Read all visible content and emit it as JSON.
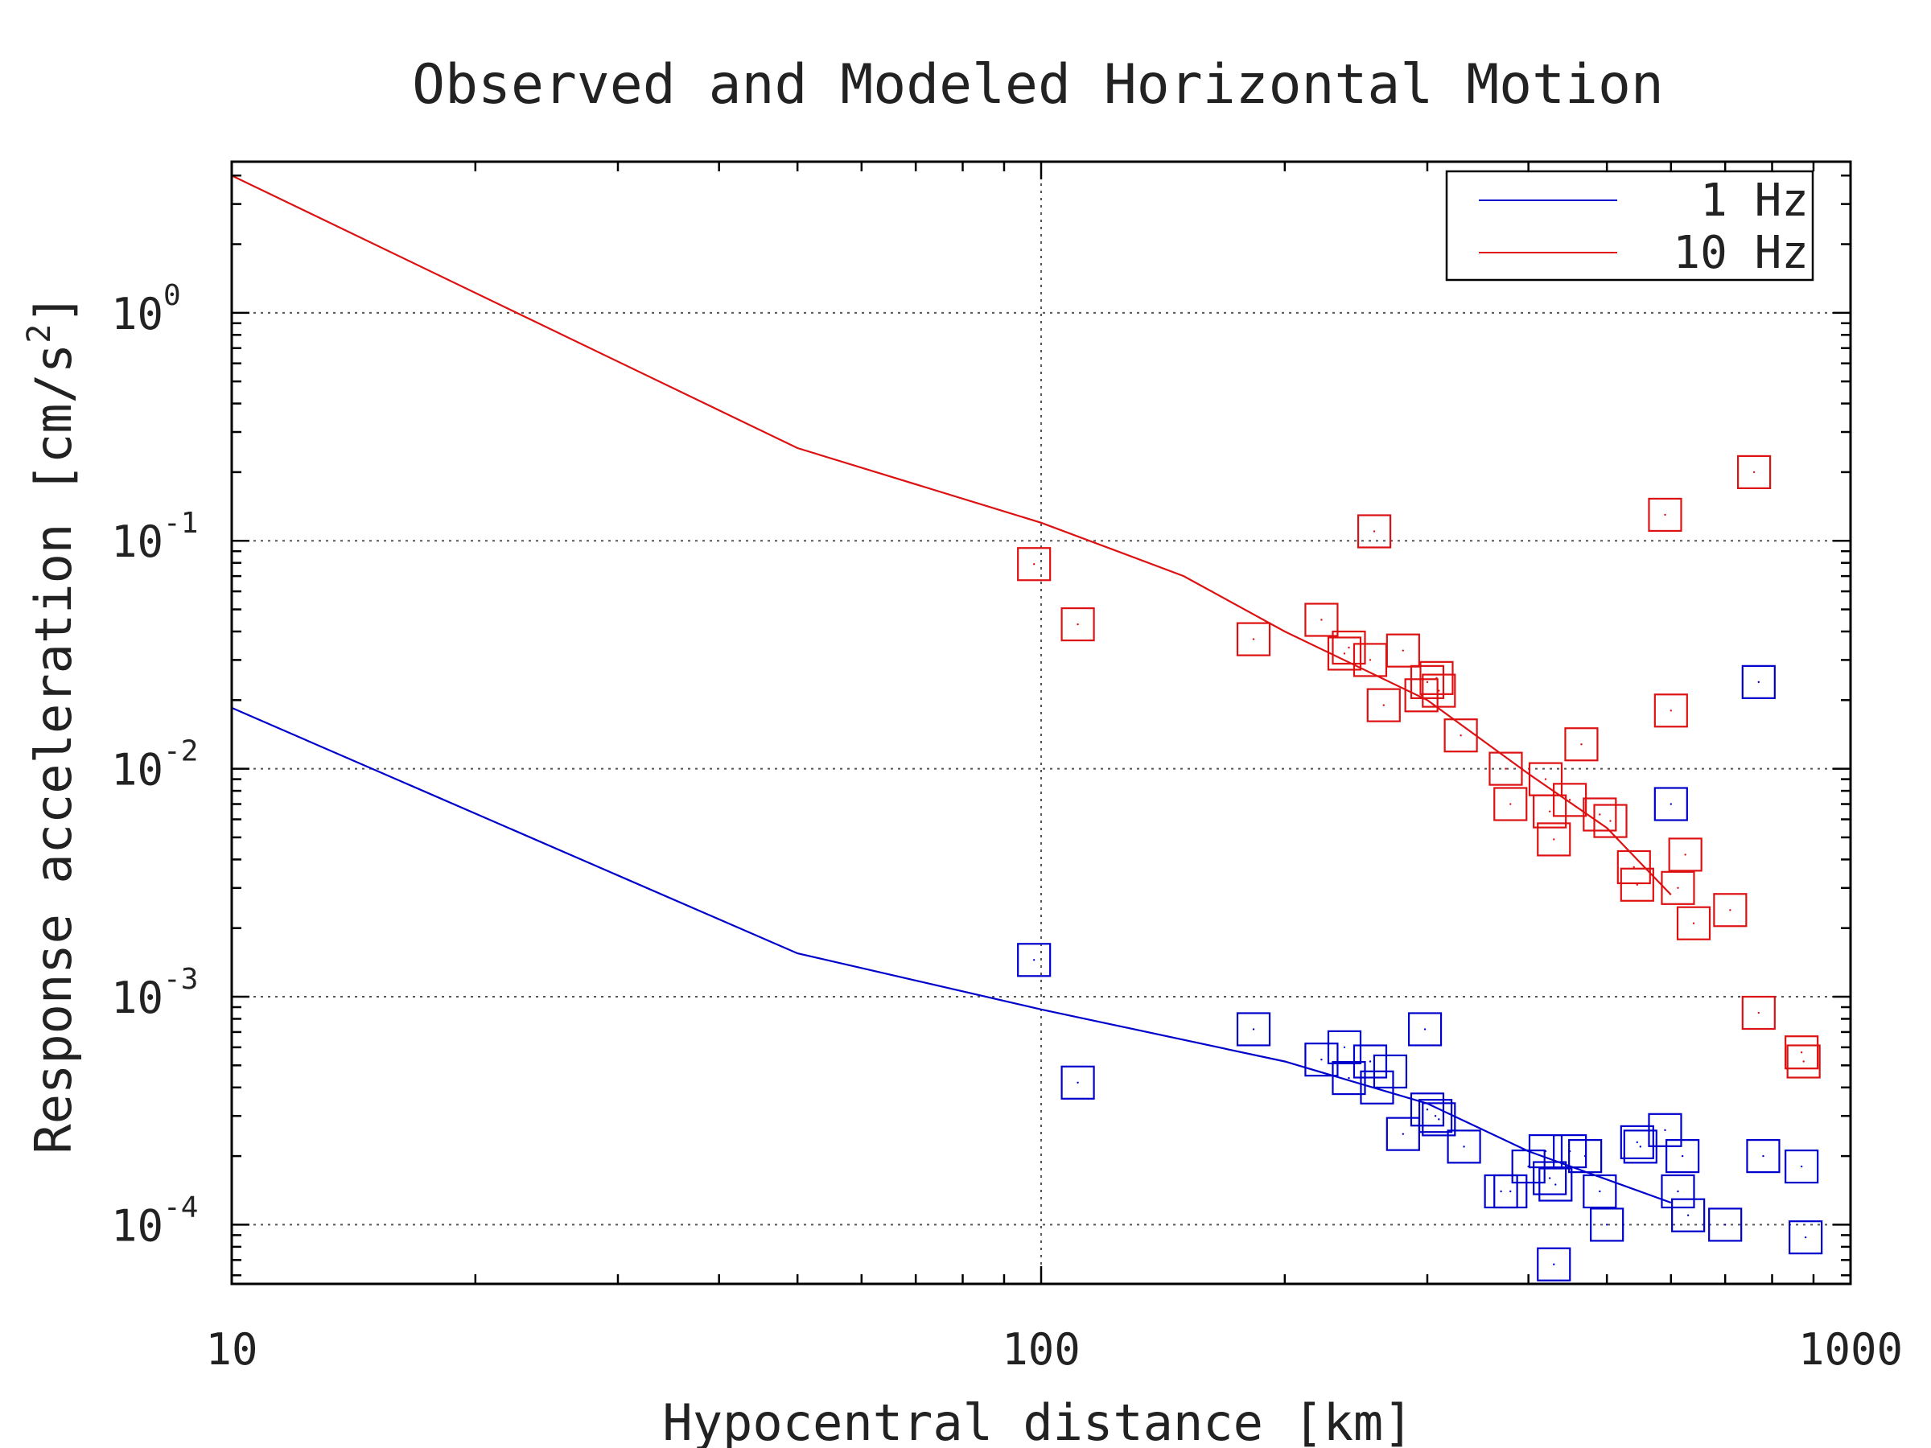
{
  "chart_data": {
    "type": "line",
    "title": "Observed and Modeled Horizontal Motion",
    "xlabel": "Hypocentral distance [km]",
    "ylabel": "Response acceleration [cm/s",
    "ylabel_sup": "2",
    "ylabel_end": "]",
    "x_scale": "log",
    "y_scale": "log",
    "xlim": [
      10,
      1000
    ],
    "ylim": [
      5.5e-05,
      4.6
    ],
    "x_ticks": [
      {
        "value": 10,
        "label": "10"
      },
      {
        "value": 100,
        "label": "100"
      },
      {
        "value": 1000,
        "label": "1000"
      }
    ],
    "y_ticks": [
      {
        "value": 0.0001,
        "base": "10",
        "exp": "-4"
      },
      {
        "value": 0.001,
        "base": "10",
        "exp": "-3"
      },
      {
        "value": 0.01,
        "base": "10",
        "exp": "-2"
      },
      {
        "value": 0.1,
        "base": "10",
        "exp": "-1"
      },
      {
        "value": 1,
        "base": "10",
        "exp": "0"
      }
    ],
    "grid": true,
    "legend_position": "top-right",
    "series": [
      {
        "name": "1 Hz",
        "color": "#0000cc",
        "line": [
          [
            10,
            0.0185
          ],
          [
            50,
            0.00155
          ],
          [
            100,
            0.00088
          ],
          [
            200,
            0.00052
          ],
          [
            300,
            0.00034
          ],
          [
            400,
            0.00021
          ],
          [
            600,
            0.000125
          ]
        ],
        "points": [
          [
            98,
            0.00145
          ],
          [
            111,
            0.00042
          ],
          [
            183,
            0.00072
          ],
          [
            222,
            0.00053
          ],
          [
            237,
            0.0006
          ],
          [
            240,
            0.00044
          ],
          [
            255,
            0.00052
          ],
          [
            260,
            0.0004
          ],
          [
            270,
            0.00047
          ],
          [
            280,
            0.00025
          ],
          [
            298,
            0.00072
          ],
          [
            300,
            0.00032
          ],
          [
            307,
            0.0003
          ],
          [
            310,
            0.00029
          ],
          [
            333,
            0.00022
          ],
          [
            370,
            0.00014
          ],
          [
            380,
            0.00014
          ],
          [
            400,
            0.00018
          ],
          [
            420,
            0.00021
          ],
          [
            425,
            0.00016
          ],
          [
            430,
            6.7e-05
          ],
          [
            432,
            0.00015
          ],
          [
            450,
            0.00021
          ],
          [
            470,
            0.0002
          ],
          [
            490,
            0.00014
          ],
          [
            500,
            0.0001
          ],
          [
            545,
            0.00023
          ],
          [
            550,
            0.00022
          ],
          [
            590,
            0.00026
          ],
          [
            600,
            0.007
          ],
          [
            612,
            0.00014
          ],
          [
            620,
            0.0002
          ],
          [
            630,
            0.00011
          ],
          [
            700,
            0.0001
          ],
          [
            770,
            0.024
          ],
          [
            780,
            0.0002
          ],
          [
            870,
            0.00018
          ],
          [
            880,
            8.8e-05
          ]
        ]
      },
      {
        "name": "10 Hz",
        "color": "#dd1111",
        "line": [
          [
            10,
            4.0
          ],
          [
            50,
            0.255
          ],
          [
            100,
            0.12
          ],
          [
            150,
            0.07
          ],
          [
            200,
            0.04
          ],
          [
            300,
            0.02
          ],
          [
            400,
            0.0095
          ],
          [
            500,
            0.0055
          ],
          [
            600,
            0.0028
          ]
        ],
        "points": [
          [
            98,
            0.079
          ],
          [
            111,
            0.043
          ],
          [
            183,
            0.037
          ],
          [
            222,
            0.045
          ],
          [
            237,
            0.032
          ],
          [
            240,
            0.034
          ],
          [
            255,
            0.03
          ],
          [
            258,
            0.11
          ],
          [
            265,
            0.019
          ],
          [
            280,
            0.033
          ],
          [
            295,
            0.021
          ],
          [
            300,
            0.024
          ],
          [
            308,
            0.025
          ],
          [
            310,
            0.022
          ],
          [
            330,
            0.014
          ],
          [
            375,
            0.01
          ],
          [
            380,
            0.007
          ],
          [
            420,
            0.009
          ],
          [
            425,
            0.0065
          ],
          [
            430,
            0.0049
          ],
          [
            450,
            0.0073
          ],
          [
            465,
            0.0128
          ],
          [
            490,
            0.0063
          ],
          [
            505,
            0.0059
          ],
          [
            540,
            0.0037
          ],
          [
            545,
            0.0031
          ],
          [
            590,
            0.13
          ],
          [
            600,
            0.018
          ],
          [
            612,
            0.003
          ],
          [
            625,
            0.0042
          ],
          [
            640,
            0.0021
          ],
          [
            710,
            0.0024
          ],
          [
            760,
            0.2
          ],
          [
            770,
            0.00085
          ],
          [
            870,
            0.00057
          ],
          [
            875,
            0.00052
          ]
        ]
      }
    ]
  }
}
